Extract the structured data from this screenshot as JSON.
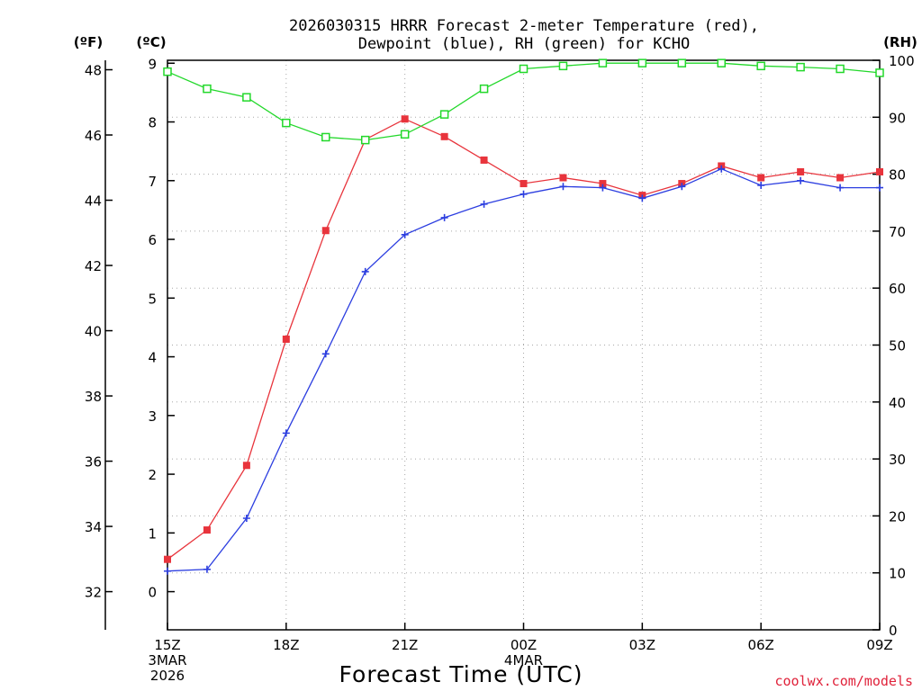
{
  "chart_data": {
    "type": "line",
    "title_line1": "2026030315 HRRR Forecast 2-meter Temperature (red),",
    "title_line2": "Dewpoint (blue), RH (green) for KCHO",
    "xlabel": "Forecast Time (UTC)",
    "credit": "coolwx.com/models",
    "unit_labels": {
      "fahrenheit": "(ºF)",
      "celsius": "(ºC)",
      "rh": "(RH)"
    },
    "x_hours": [
      0,
      1,
      2,
      3,
      4,
      5,
      6,
      7,
      8,
      9,
      10,
      11,
      12,
      13,
      14,
      15,
      16,
      17,
      18
    ],
    "x_tick_labels": [
      {
        "hour": 0,
        "lines": [
          "15Z",
          "3MAR",
          "2026"
        ]
      },
      {
        "hour": 3,
        "lines": [
          "18Z"
        ]
      },
      {
        "hour": 6,
        "lines": [
          "21Z"
        ]
      },
      {
        "hour": 9,
        "lines": [
          "00Z",
          "4MAR"
        ]
      },
      {
        "hour": 12,
        "lines": [
          "03Z"
        ]
      },
      {
        "hour": 15,
        "lines": [
          "06Z"
        ]
      },
      {
        "hour": 18,
        "lines": [
          "09Z"
        ]
      }
    ],
    "celsius_ticks": [
      "0",
      "1",
      "2",
      "3",
      "4",
      "5",
      "6",
      "7",
      "8",
      "9"
    ],
    "fahrenheit_ticks": [
      "32",
      "34",
      "36",
      "38",
      "40",
      "42",
      "44",
      "46",
      "48"
    ],
    "rh_ticks": [
      "0",
      "10",
      "20",
      "30",
      "40",
      "50",
      "60",
      "70",
      "80",
      "90",
      "100"
    ],
    "ylim_celsius": [
      -0.65,
      9.05
    ],
    "ylim_rh": [
      0,
      100
    ],
    "series": [
      {
        "name": "Temperature",
        "color": "#e8343c",
        "marker": "filled-square",
        "units": "C",
        "values": [
          0.55,
          1.05,
          2.15,
          4.3,
          6.15,
          7.7,
          8.05,
          7.75,
          7.35,
          6.95,
          7.05,
          6.95,
          6.75,
          6.95,
          7.25,
          7.05,
          7.15,
          7.05,
          7.15
        ]
      },
      {
        "name": "Dewpoint",
        "color": "#2c3ee0",
        "marker": "plus",
        "units": "C",
        "values": [
          0.35,
          0.38,
          1.25,
          2.7,
          4.05,
          5.45,
          6.08,
          6.37,
          6.6,
          6.77,
          6.9,
          6.88,
          6.7,
          6.9,
          7.2,
          6.92,
          7.0,
          6.88,
          6.88
        ]
      },
      {
        "name": "RH",
        "color": "#22d82a",
        "marker": "open-square",
        "units": "%",
        "values": [
          98,
          95,
          93.5,
          89,
          86.5,
          86,
          87,
          90.5,
          95,
          98.5,
          99,
          99.5,
          99.5,
          99.5,
          99.5,
          99,
          98.8,
          98.5,
          97.8
        ]
      }
    ]
  }
}
